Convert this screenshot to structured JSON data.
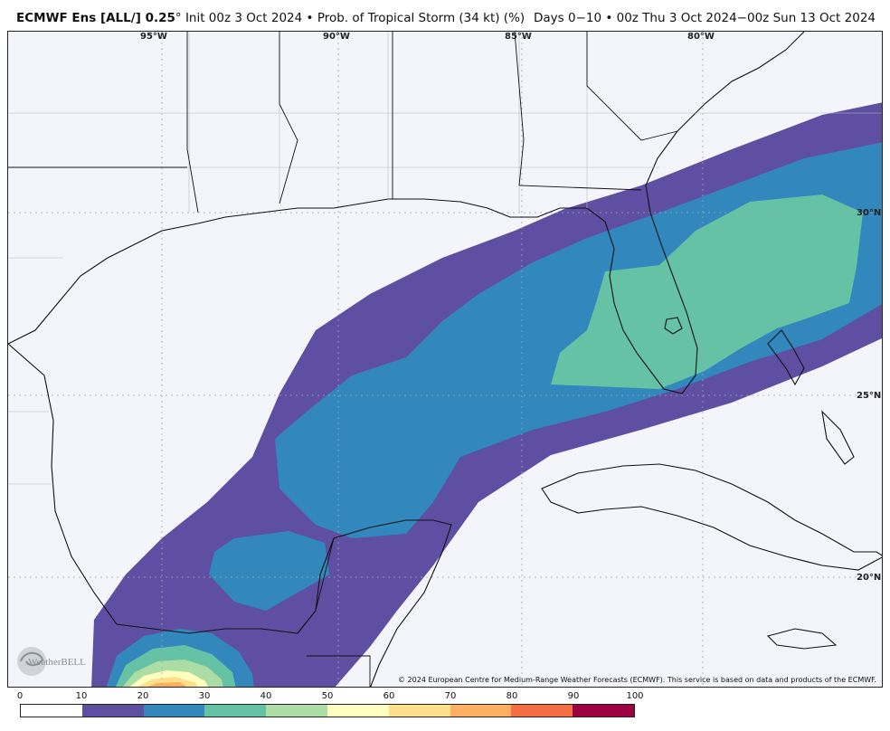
{
  "header": {
    "model": "ECMWF Ens [ALL/] 0.25",
    "degree": "°",
    "init": "Init 00z 3 Oct 2024",
    "bullet": "•",
    "product": "Prob. of Tropical Storm (34 kt) (%)",
    "valid": "Days 0−10 • 00z Thu 3 Oct 2024−00z Sun 13 Oct 2024"
  },
  "map": {
    "lon_labels": [
      "95°W",
      "90°W",
      "85°W",
      "80°W"
    ],
    "lat_labels": [
      "30°N",
      "25°N",
      "20°N"
    ],
    "credit": "© 2024 European Centre for Medium-Range Weather Forecasts (ECMWF). This service is based on data and products of the ECMWF.",
    "logo_text": "WeatherBELL"
  },
  "colorbar": {
    "ticks": [
      "0",
      "10",
      "20",
      "30",
      "40",
      "50",
      "60",
      "70",
      "80",
      "90",
      "100"
    ],
    "colors": [
      "#ffffff",
      "#5e4fa2",
      "#3288bd",
      "#66c2a5",
      "#abdda4",
      "#ffffbf",
      "#fee08b",
      "#fdae61",
      "#f46d43",
      "#9e0142"
    ]
  },
  "colors": {
    "ocean": "#f3f5fb",
    "land": "#f3f5fb",
    "p10": "#5e4fa2",
    "p20": "#3288bd",
    "p30": "#66c2a5",
    "p40": "#abdda4",
    "p50": "#ffffbf",
    "p60": "#fee08b",
    "p70": "#fdae61"
  }
}
